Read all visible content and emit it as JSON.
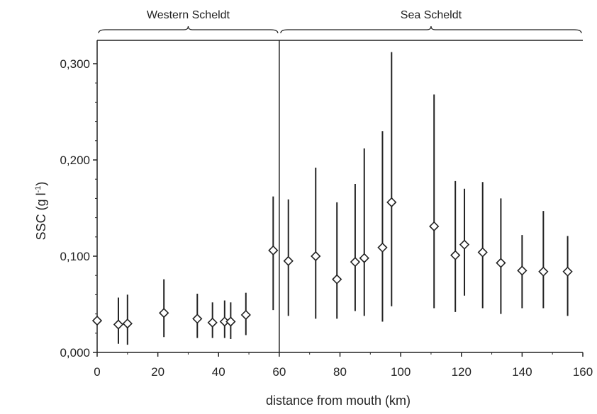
{
  "chart_data": {
    "type": "scatter",
    "xlabel": "distance from mouth (km)",
    "ylabel": {
      "prefix": "SSC (g l",
      "sup": "-1",
      "suffix": ")"
    },
    "xlim": [
      0,
      160
    ],
    "ylim": [
      0,
      0.3
    ],
    "x_ticks": [
      0,
      20,
      40,
      60,
      80,
      100,
      120,
      140,
      160
    ],
    "x_tick_labels": [
      "0",
      "20",
      "40",
      "60",
      "80",
      "100",
      "120",
      "140",
      "160"
    ],
    "y_ticks": [
      0,
      0.1,
      0.2,
      0.3
    ],
    "y_tick_labels": [
      "0,000",
      "0,100",
      "0,200",
      "0,300"
    ],
    "grid": false,
    "boundary_x": 60,
    "regions": [
      {
        "label": "Western Scheldt",
        "from": 0,
        "to": 60
      },
      {
        "label": "Sea Scheldt",
        "from": 60,
        "to": 160
      }
    ],
    "series": [
      {
        "points": [
          {
            "x": 0,
            "y": 0.033,
            "low": 0.033,
            "high": 0.033
          },
          {
            "x": 7,
            "y": 0.029,
            "low": 0.009,
            "high": 0.057
          },
          {
            "x": 10,
            "y": 0.03,
            "low": 0.008,
            "high": 0.06
          },
          {
            "x": 22,
            "y": 0.041,
            "low": 0.016,
            "high": 0.076
          },
          {
            "x": 33,
            "y": 0.035,
            "low": 0.015,
            "high": 0.061
          },
          {
            "x": 38,
            "y": 0.031,
            "low": 0.015,
            "high": 0.052
          },
          {
            "x": 42,
            "y": 0.032,
            "low": 0.015,
            "high": 0.054
          },
          {
            "x": 44,
            "y": 0.032,
            "low": 0.014,
            "high": 0.052
          },
          {
            "x": 49,
            "y": 0.039,
            "low": 0.018,
            "high": 0.062
          },
          {
            "x": 58,
            "y": 0.106,
            "low": 0.044,
            "high": 0.162
          },
          {
            "x": 63,
            "y": 0.095,
            "low": 0.038,
            "high": 0.159
          },
          {
            "x": 72,
            "y": 0.1,
            "low": 0.035,
            "high": 0.192
          },
          {
            "x": 79,
            "y": 0.076,
            "low": 0.035,
            "high": 0.156
          },
          {
            "x": 85,
            "y": 0.094,
            "low": 0.043,
            "high": 0.175
          },
          {
            "x": 88,
            "y": 0.098,
            "low": 0.038,
            "high": 0.212
          },
          {
            "x": 94,
            "y": 0.109,
            "low": 0.032,
            "high": 0.23
          },
          {
            "x": 97,
            "y": 0.156,
            "low": 0.048,
            "high": 0.312
          },
          {
            "x": 111,
            "y": 0.131,
            "low": 0.046,
            "high": 0.268
          },
          {
            "x": 118,
            "y": 0.101,
            "low": 0.042,
            "high": 0.178
          },
          {
            "x": 121,
            "y": 0.112,
            "low": 0.059,
            "high": 0.17
          },
          {
            "x": 127,
            "y": 0.104,
            "low": 0.046,
            "high": 0.177
          },
          {
            "x": 133,
            "y": 0.093,
            "low": 0.04,
            "high": 0.16
          },
          {
            "x": 140,
            "y": 0.085,
            "low": 0.046,
            "high": 0.122
          },
          {
            "x": 147,
            "y": 0.084,
            "low": 0.046,
            "high": 0.147
          },
          {
            "x": 155,
            "y": 0.084,
            "low": 0.038,
            "high": 0.121
          }
        ]
      }
    ]
  }
}
